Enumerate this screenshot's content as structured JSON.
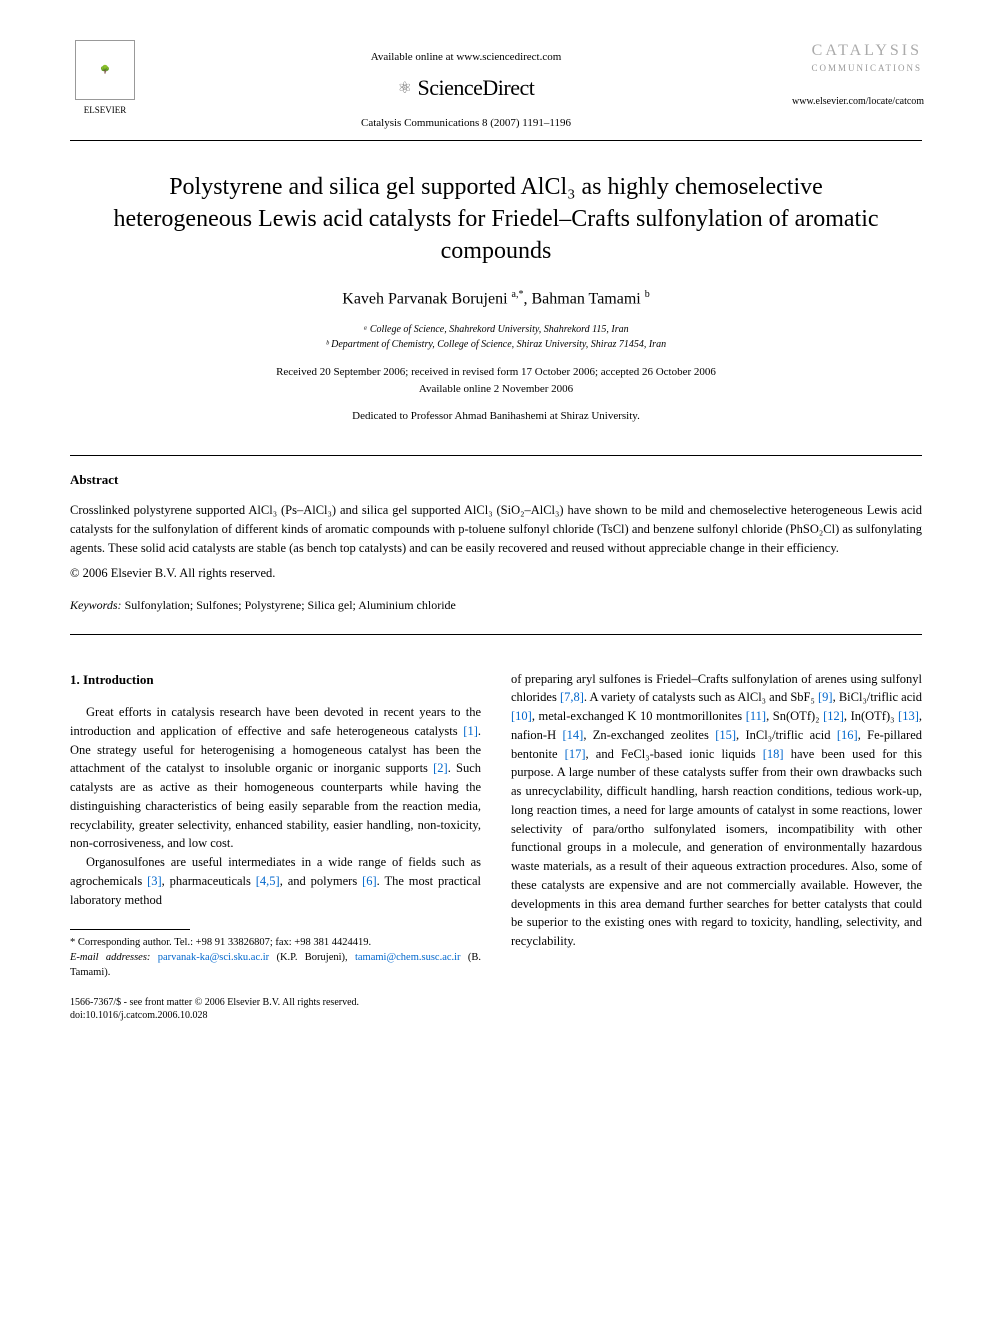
{
  "header": {
    "available_online": "Available online at www.sciencedirect.com",
    "sciencedirect": "ScienceDirect",
    "journal_citation": "Catalysis Communications 8 (2007) 1191–1196",
    "elsevier_label": "ELSEVIER",
    "catalysis_label": "CATALYSIS",
    "communications_label": "COMMUNICATIONS",
    "journal_url": "www.elsevier.com/locate/catcom"
  },
  "title": "Polystyrene and silica gel supported AlCl₃ as highly chemoselective heterogeneous Lewis acid catalysts for Friedel–Crafts sulfonylation of aromatic compounds",
  "authors_html": "Kaveh Parvanak Borujeni <sup>a,*</sup>, Bahman Tamami <sup>b</sup>",
  "affiliations": {
    "a": "ᵃ College of Science, Shahrekord University, Shahrekord 115, Iran",
    "b": "ᵇ Department of Chemistry, College of Science, Shiraz University, Shiraz 71454, Iran"
  },
  "dates": {
    "received": "Received 20 September 2006; received in revised form 17 October 2006; accepted 26 October 2006",
    "available": "Available online 2 November 2006"
  },
  "dedication": "Dedicated to Professor Ahmad Banihashemi at Shiraz University.",
  "abstract": {
    "heading": "Abstract",
    "text": "Crosslinked polystyrene supported AlCl₃ (Ps–AlCl₃) and silica gel supported AlCl₃ (SiO₂–AlCl₃) have shown to be mild and chemoselective heterogeneous Lewis acid catalysts for the sulfonylation of different kinds of aromatic compounds with p-toluene sulfonyl chloride (TsCl) and benzene sulfonyl chloride (PhSO₂Cl) as sulfonylating agents. These solid acid catalysts are stable (as bench top catalysts) and can be easily recovered and reused without appreciable change in their efficiency.",
    "copyright": "© 2006 Elsevier B.V. All rights reserved."
  },
  "keywords": {
    "label": "Keywords:",
    "text": " Sulfonylation; Sulfones; Polystyrene; Silica gel; Aluminium chloride"
  },
  "intro": {
    "heading": "1. Introduction",
    "left_p1_pre": "Great efforts in catalysis research have been devoted in recent years to the introduction and application of effective and safe heterogeneous catalysts ",
    "ref1": "[1]",
    "left_p1_mid": ". One strategy useful for heterogenising a homogeneous catalyst has been the attachment of the catalyst to insoluble organic or inorganic supports ",
    "ref2": "[2]",
    "left_p1_post": ". Such catalysts are as active as their homogeneous counterparts while having the distinguishing characteristics of being easily separable from the reaction media, recyclability, greater selectivity, enhanced stability, easier handling, non-toxicity, non-corrosiveness, and low cost.",
    "left_p2_pre": "Organosulfones are useful intermediates in a wide range of fields such as agrochemicals ",
    "ref3": "[3]",
    "left_p2_mid1": ", pharmaceuticals ",
    "ref45": "[4,5]",
    "left_p2_mid2": ", and polymers ",
    "ref6": "[6]",
    "left_p2_post": ". The most practical laboratory method",
    "right_p1_pre": "of preparing aryl sulfones is Friedel–Crafts sulfonylation of arenes using sulfonyl chlorides ",
    "ref78": "[7,8]",
    "right_p1_mid1": ". A variety of catalysts such as AlCl₃ and SbF₅ ",
    "ref9": "[9]",
    "right_p1_mid2": ", BiCl₃/triflic acid ",
    "ref10": "[10]",
    "right_p1_mid3": ", metal-exchanged K 10 montmorillonites ",
    "ref11": "[11]",
    "right_p1_mid4": ", Sn(OTf)₂ ",
    "ref12": "[12]",
    "right_p1_mid5": ", In(OTf)₃ ",
    "ref13": "[13]",
    "right_p1_mid6": ", nafion-H ",
    "ref14": "[14]",
    "right_p1_mid7": ", Zn-exchanged zeolites ",
    "ref15": "[15]",
    "right_p1_mid8": ", InCl₃/triflic acid ",
    "ref16": "[16]",
    "right_p1_mid9": ", Fe-pillared bentonite ",
    "ref17": "[17]",
    "right_p1_mid10": ", and FeCl₃-based ionic liquids ",
    "ref18": "[18]",
    "right_p1_post": " have been used for this purpose. A large number of these catalysts suffer from their own drawbacks such as unrecyclability, difficult handling, harsh reaction conditions, tedious work-up, long reaction times, a need for large amounts of catalyst in some reactions, lower selectivity of para/ortho sulfonylated isomers, incompatibility with other functional groups in a molecule, and generation of environmentally hazardous waste materials, as a result of their aqueous extraction procedures. Also, some of these catalysts are expensive and are not commercially available. However, the developments in this area demand further searches for better catalysts that could be superior to the existing ones with regard to toxicity, handling, selectivity, and recyclability."
  },
  "footnote": {
    "corresponding": "* Corresponding author. Tel.: +98 91 33826807; fax: +98 381 4424419.",
    "email_label": "E-mail addresses:",
    "email1": "parvanak-ka@sci.sku.ac.ir",
    "email1_author": " (K.P. Borujeni), ",
    "email2": "tamami@chem.susc.ac.ir",
    "email2_author": " (B. Tamami)."
  },
  "footer": {
    "line1": "1566-7367/$ - see front matter © 2006 Elsevier B.V. All rights reserved.",
    "line2": "doi:10.1016/j.catcom.2006.10.028"
  },
  "colors": {
    "link": "#0066cc",
    "text": "#000000",
    "grey": "#aaaaaa"
  }
}
